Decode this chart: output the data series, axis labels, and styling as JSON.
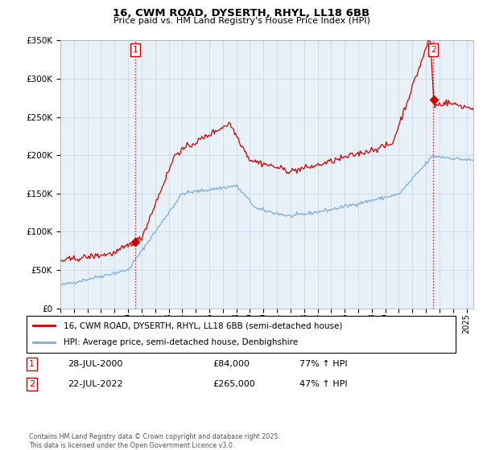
{
  "title": "16, CWM ROAD, DYSERTH, RHYL, LL18 6BB",
  "subtitle": "Price paid vs. HM Land Registry's House Price Index (HPI)",
  "ylim": [
    0,
    350000
  ],
  "yticks": [
    0,
    50000,
    100000,
    150000,
    200000,
    250000,
    300000,
    350000
  ],
  "xlim_start": 1995.0,
  "xlim_end": 2025.5,
  "sale1_date_num": 2000.55,
  "sale1_price": 84000,
  "sale2_date_num": 2022.55,
  "sale2_price": 265000,
  "legend_line1": "16, CWM ROAD, DYSERTH, RHYL, LL18 6BB (semi-detached house)",
  "legend_line2": "HPI: Average price, semi-detached house, Denbighshire",
  "ann1_date": "28-JUL-2000",
  "ann1_price": "£84,000",
  "ann1_hpi": "77% ↑ HPI",
  "ann2_date": "22-JUL-2022",
  "ann2_price": "£265,000",
  "ann2_hpi": "47% ↑ HPI",
  "footer": "Contains HM Land Registry data © Crown copyright and database right 2025.\nThis data is licensed under the Open Government Licence v3.0.",
  "red_color": "#cc0000",
  "blue_color": "#7aade0",
  "grid_color": "#c8d8e8",
  "bg_color": "#e8f0f8",
  "plot_bg": "#e8f0f8"
}
